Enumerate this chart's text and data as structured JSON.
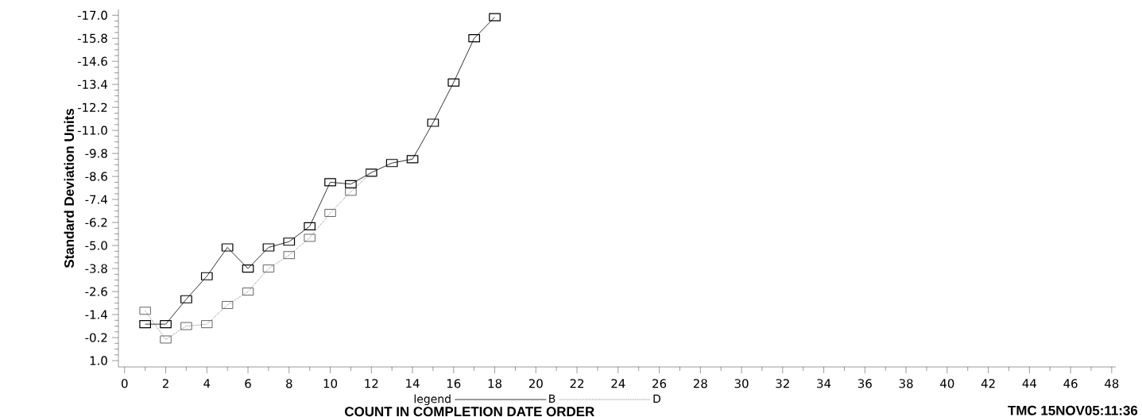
{
  "chart_data": {
    "type": "line",
    "xlabel": "COUNT IN COMPLETION DATE ORDER",
    "ylabel": "Standard Deviation Units",
    "legend_title": "legend",
    "annotations": [
      "TMC   15NOV05:11:36"
    ],
    "xlim": [
      -0.3,
      48.2
    ],
    "ylim": [
      1.33,
      -17.3
    ],
    "xticks": [
      0,
      2,
      4,
      6,
      8,
      10,
      12,
      14,
      16,
      18,
      20,
      22,
      24,
      26,
      28,
      30,
      32,
      34,
      36,
      38,
      40,
      42,
      44,
      46,
      48
    ],
    "yticks": [
      {
        "value": -17.0,
        "label": "-17.0"
      },
      {
        "value": -15.8,
        "label": "-15.8"
      },
      {
        "value": -14.6,
        "label": "-14.6"
      },
      {
        "value": -13.4,
        "label": "-13.4"
      },
      {
        "value": -12.2,
        "label": "-12.2"
      },
      {
        "value": -11.0,
        "label": "-11.0"
      },
      {
        "value": -9.8,
        "label": "-9.8"
      },
      {
        "value": -8.6,
        "label": "-8.6"
      },
      {
        "value": -7.4,
        "label": "-7.4"
      },
      {
        "value": -6.2,
        "label": "-6.2"
      },
      {
        "value": -5.0,
        "label": "-5.0"
      },
      {
        "value": -3.8,
        "label": "-3.8"
      },
      {
        "value": -2.6,
        "label": "-2.6"
      },
      {
        "value": -1.4,
        "label": "-1.4"
      },
      {
        "value": -0.2,
        "label": "-0.2"
      },
      {
        "value": 1.0,
        "label": "1.0"
      }
    ],
    "grid": false,
    "legend": "bottom",
    "marker": "square",
    "series": [
      {
        "name": "B",
        "color": "#000000",
        "line_style": "solid",
        "x": [
          1,
          2,
          3,
          4,
          5,
          6,
          7,
          8,
          9,
          10,
          11,
          12,
          13,
          14,
          15,
          16,
          17,
          18
        ],
        "values": [
          -0.9,
          -0.9,
          -2.2,
          -3.4,
          -4.9,
          -3.8,
          -4.9,
          -5.2,
          -6.0,
          -8.3,
          -8.2,
          -8.8,
          -9.3,
          -9.5,
          -11.4,
          -13.5,
          -15.8,
          -16.9
        ]
      },
      {
        "name": "D",
        "color": "#555555",
        "line_style": "dotted",
        "x": [
          1,
          2,
          3,
          4,
          5,
          6,
          7,
          8,
          9,
          10,
          11,
          12
        ],
        "values": [
          -1.6,
          -0.1,
          -0.8,
          -0.9,
          -1.9,
          -2.6,
          -3.8,
          -4.5,
          -5.4,
          -6.7,
          -7.8,
          -8.8
        ]
      }
    ]
  }
}
